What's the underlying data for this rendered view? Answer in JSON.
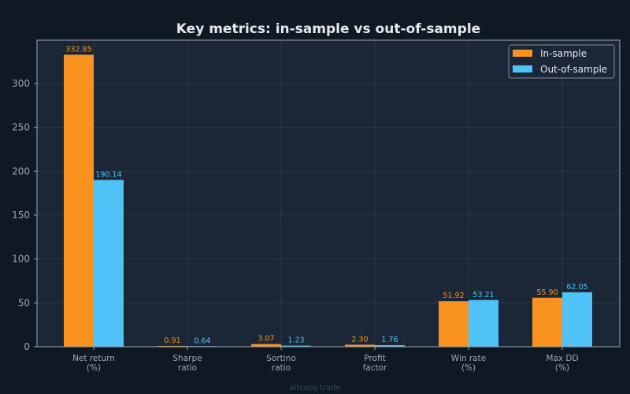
{
  "chart_data": {
    "type": "bar",
    "title": "Key metrics: in-sample vs out-of-sample",
    "categories": [
      [
        "Net return",
        "(%)"
      ],
      [
        "Sharpe",
        "ratio"
      ],
      [
        "Sortino",
        "ratio"
      ],
      [
        "Profit",
        "factor"
      ],
      [
        "Win rate",
        "(%)"
      ],
      [
        "Max DD",
        "(%)"
      ]
    ],
    "series": [
      {
        "name": "In-sample",
        "color": "#f7931e",
        "values": [
          332.85,
          0.91,
          3.07,
          2.3,
          51.92,
          55.9
        ],
        "labels": [
          "332.85",
          "0.91",
          "3.07",
          "2.30",
          "51.92",
          "55.90"
        ]
      },
      {
        "name": "Out-of-sample",
        "color": "#4fc3f7",
        "values": [
          190.14,
          0.64,
          1.23,
          1.76,
          53.21,
          62.05
        ],
        "labels": [
          "190.14",
          "0.64",
          "1.23",
          "1.76",
          "53.21",
          "62.05"
        ]
      }
    ],
    "yticks": [
      0,
      50,
      100,
      150,
      200,
      250,
      300
    ],
    "ylim": [
      0,
      349.4
    ],
    "grid": true,
    "legend": "top-right"
  },
  "watermark": "altcopy.trade"
}
